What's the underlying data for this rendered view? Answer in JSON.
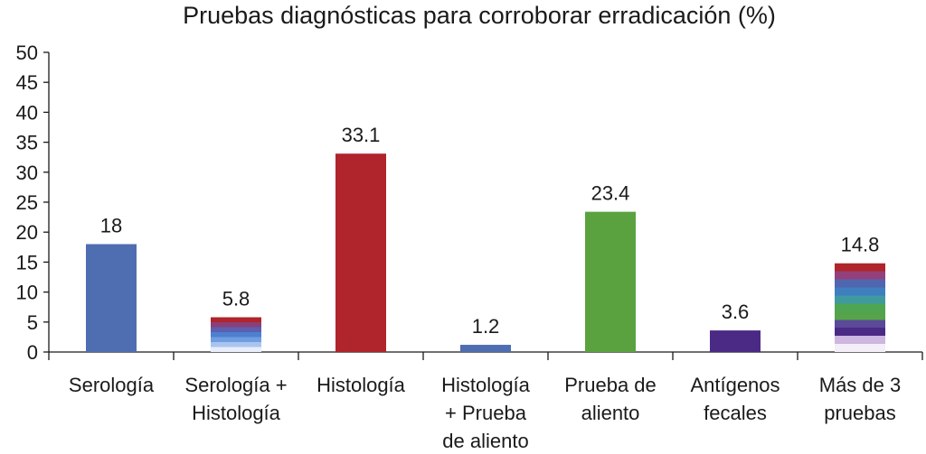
{
  "chart_data": {
    "type": "bar",
    "title": "Pruebas diagnósticas para corroborar erradicación (%)",
    "xlabel": "",
    "ylabel": "",
    "ylim": [
      0,
      50
    ],
    "yticks": [
      0,
      5,
      10,
      15,
      20,
      25,
      30,
      35,
      40,
      45,
      50
    ],
    "grid": false,
    "legend": "none",
    "categories": [
      [
        "Serología"
      ],
      [
        "Serología +",
        "Histología"
      ],
      [
        "Histología"
      ],
      [
        "Histología",
        "+ Prueba",
        "de aliento"
      ],
      [
        "Prueba de",
        "aliento"
      ],
      [
        "Antígenos",
        "fecales"
      ],
      [
        "Más de 3",
        "pruebas"
      ]
    ],
    "values": [
      18,
      5.8,
      33.1,
      1.2,
      23.4,
      3.6,
      14.8
    ],
    "data_labels": [
      "18",
      "5.8",
      "33.1",
      "1.2",
      "23.4",
      "3.6",
      "14.8"
    ],
    "bar_fills": [
      {
        "kind": "solid",
        "colors": [
          "#4f6db1"
        ]
      },
      {
        "kind": "stripes",
        "colors": [
          "#b0242b",
          "#8a3f78",
          "#5c5fae",
          "#4f7fd0",
          "#6f9ee0",
          "#a9c4ef",
          "#e8eefb"
        ]
      },
      {
        "kind": "solid",
        "colors": [
          "#b0242b"
        ]
      },
      {
        "kind": "solid",
        "colors": [
          "#4f6db1"
        ]
      },
      {
        "kind": "solid",
        "colors": [
          "#5aa240"
        ]
      },
      {
        "kind": "solid",
        "colors": [
          "#4b2a86"
        ]
      },
      {
        "kind": "stripes",
        "colors": [
          "#b0242b",
          "#94407a",
          "#5066b0",
          "#3f7fc0",
          "#3f9aa0",
          "#4ea652",
          "#55a44a",
          "#5a4a98",
          "#4b2a86",
          "#cdb6e0",
          "#f4eef9"
        ]
      }
    ],
    "colors": {
      "axis": "#1a1a1a",
      "text": "#1a1a1a"
    }
  }
}
